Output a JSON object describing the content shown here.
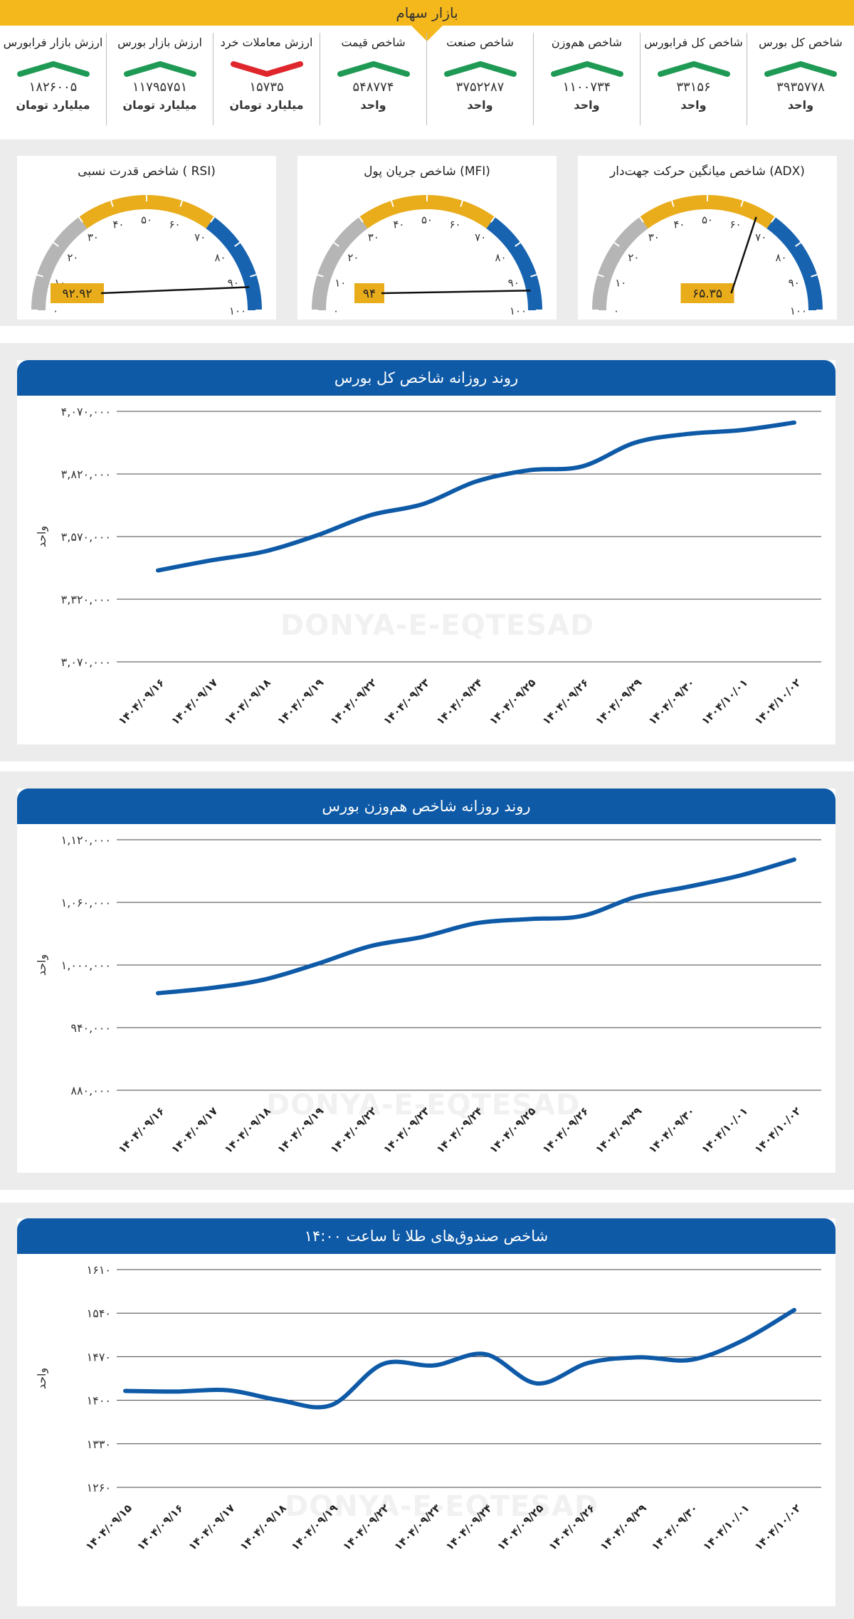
{
  "header": {
    "title": "بازار سهام",
    "accent": "#f5b81c"
  },
  "colors": {
    "up": "#1f9a55",
    "down": "#e0262d",
    "line": "#0e5aa7",
    "band": "#ececec"
  },
  "stats": [
    {
      "title": "شاخص کل بورس",
      "value": "۳۹۳۵۷۷۸",
      "unit": "واحد",
      "trend": "up"
    },
    {
      "title": "شاخص کل فرابورس",
      "value": "۳۳۱۵۶",
      "unit": "واحد",
      "trend": "up"
    },
    {
      "title": "شاخص هم‌وزن",
      "value": "۱۱۰۰۷۳۴",
      "unit": "واحد",
      "trend": "up"
    },
    {
      "title": "شاخص صنعت",
      "value": "۳۷۵۲۲۸۷",
      "unit": "واحد",
      "trend": "up"
    },
    {
      "title": "شاخص قیمت",
      "value": "۵۴۸۷۷۴",
      "unit": "واحد",
      "trend": "up"
    },
    {
      "title": "ارزش معاملات خرد",
      "value": "۱۵۷۳۵",
      "unit": "میلیارد تومان",
      "trend": "down"
    },
    {
      "title": "ارزش بازار بورس",
      "value": "۱۱۷۹۵۷۵۱",
      "unit": "میلیارد تومان",
      "trend": "up"
    },
    {
      "title": "ارزش بازار فرابورس",
      "value": "۱۸۲۶۰۰۵",
      "unit": "میلیارد تومان",
      "trend": "up"
    }
  ],
  "gauges": [
    {
      "title": "شاخص میانگین حرکت جهت‌دار (ADX)",
      "value": 65.35,
      "label": "۶۵.۳۵",
      "ticks": [
        "۰",
        "۱۰",
        "۲۰",
        "۳۰",
        "۴۰",
        "۵۰",
        "۶۰",
        "۷۰",
        "۸۰",
        "۹۰",
        "۱۰۰"
      ],
      "zones": [
        "#b5b5b5",
        "#e9ac1b",
        "#1763b0"
      ]
    },
    {
      "title": "شاخص جریان پول (MFI)",
      "value": 94,
      "label": "۹۴",
      "ticks": [
        "۰",
        "۱۰",
        "۲۰",
        "۳۰",
        "۴۰",
        "۵۰",
        "۶۰",
        "۷۰",
        "۸۰",
        "۹۰",
        "۱۰۰"
      ],
      "zones": [
        "#b5b5b5",
        "#e9ac1b",
        "#1763b0"
      ]
    },
    {
      "title": "شاخص قدرت نسبی ( RSI)",
      "value": 92.92,
      "label": "۹۲.۹۲",
      "ticks": [
        "۰",
        "۱۰",
        "۲۰",
        "۳۰",
        "۴۰",
        "۵۰",
        "۶۰",
        "۷۰",
        "۸۰",
        "۹۰",
        "۱۰۰"
      ],
      "zones": [
        "#b5b5b5",
        "#e9ac1b",
        "#1763b0"
      ]
    }
  ],
  "watermark": "DONYA-E-EQTESAD",
  "chart_data": [
    {
      "type": "line",
      "title": "روند روزانه شاخص کل بورس",
      "ylabel": "واحد",
      "ylim": [
        3070000,
        4070000
      ],
      "yticks": [
        4070000,
        3820000,
        3570000,
        3320000,
        3070000
      ],
      "ytick_labels": [
        "۴,۰۷۰,۰۰۰",
        "۳,۸۲۰,۰۰۰",
        "۳,۵۷۰,۰۰۰",
        "۳,۳۲۰,۰۰۰",
        "۳,۰۷۰,۰۰۰"
      ],
      "categories": [
        "۱۴۰۴/۰۹/۱۶",
        "۱۴۰۴/۰۹/۱۷",
        "۱۴۰۴/۰۹/۱۸",
        "۱۴۰۴/۰۹/۱۹",
        "۱۴۰۴/۰۹/۲۲",
        "۱۴۰۴/۰۹/۲۳",
        "۱۴۰۴/۰۹/۲۴",
        "۱۴۰۴/۰۹/۲۵",
        "۱۴۰۴/۰۹/۲۶",
        "۱۴۰۴/۰۹/۲۹",
        "۱۴۰۴/۰۹/۳۰",
        "۱۴۰۴/۱۰/۰۱",
        "۱۴۰۴/۱۰/۰۲"
      ],
      "values": [
        3435000,
        3475000,
        3510000,
        3575000,
        3655000,
        3700000,
        3790000,
        3835000,
        3850000,
        3945000,
        3980000,
        3995000,
        4025000
      ]
    },
    {
      "type": "line",
      "title": "روند روزانه شاخص هم‌وزن بورس",
      "ylabel": "واحد",
      "ylim": [
        880000,
        1120000
      ],
      "yticks": [
        1120000,
        1060000,
        1000000,
        940000,
        880000
      ],
      "ytick_labels": [
        "۱,۱۲۰,۰۰۰",
        "۱,۰۶۰,۰۰۰",
        "۱,۰۰۰,۰۰۰",
        "۹۴۰,۰۰۰",
        "۸۸۰,۰۰۰"
      ],
      "categories": [
        "۱۴۰۴/۰۹/۱۶",
        "۱۴۰۴/۰۹/۱۷",
        "۱۴۰۴/۰۹/۱۸",
        "۱۴۰۴/۰۹/۱۹",
        "۱۴۰۴/۰۹/۲۲",
        "۱۴۰۴/۰۹/۲۳",
        "۱۴۰۴/۰۹/۲۴",
        "۱۴۰۴/۰۹/۲۵",
        "۱۴۰۴/۰۹/۲۶",
        "۱۴۰۴/۰۹/۲۹",
        "۱۴۰۴/۰۹/۳۰",
        "۱۴۰۴/۱۰/۰۱",
        "۱۴۰۴/۱۰/۰۲"
      ],
      "values": [
        973000,
        978000,
        986000,
        1001000,
        1018000,
        1027000,
        1040000,
        1044000,
        1047000,
        1065000,
        1075000,
        1086000,
        1101000
      ]
    },
    {
      "type": "line",
      "title": "شاخص صندوق‌های طلا تا ساعت ۱۴:۰۰",
      "ylabel": "واحد",
      "ylim": [
        1260,
        1610
      ],
      "yticks": [
        1610,
        1540,
        1470,
        1400,
        1330,
        1260
      ],
      "ytick_labels": [
        "۱۶۱۰",
        "۱۵۴۰",
        "۱۴۷۰",
        "۱۴۰۰",
        "۱۳۳۰",
        "۱۲۶۰"
      ],
      "categories": [
        "۱۴۰۴/۰۹/۱۵",
        "۱۴۰۴/۰۹/۱۶",
        "۱۴۰۴/۰۹/۱۷",
        "۱۴۰۴/۰۹/۱۸",
        "۱۴۰۴/۰۹/۱۹",
        "۱۴۰۴/۰۹/۲۲",
        "۱۴۰۴/۰۹/۲۳",
        "۱۴۰۴/۰۹/۲۴",
        "۱۴۰۴/۰۹/۲۵",
        "۱۴۰۴/۰۹/۲۶",
        "۱۴۰۴/۰۹/۲۹",
        "۱۴۰۴/۰۹/۳۰",
        "۱۴۰۴/۱۰/۰۱",
        "۱۴۰۴/۱۰/۰۲"
      ],
      "values": [
        1415,
        1414,
        1416,
        1400,
        1392,
        1458,
        1456,
        1474,
        1427,
        1460,
        1469,
        1465,
        1496,
        1545
      ]
    }
  ]
}
